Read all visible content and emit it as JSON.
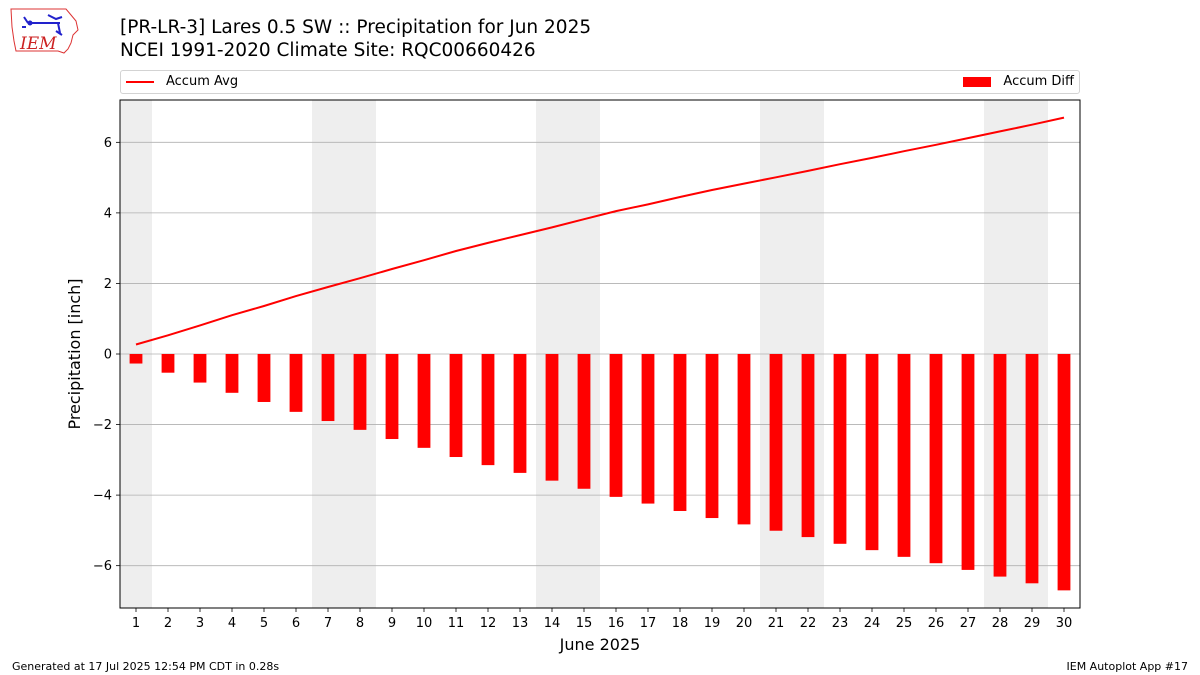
{
  "header": {
    "title_line1": "[PR-LR-3] Lares 0.5 SW :: Precipitation for Jun 2025",
    "title_line2": "NCEI 1991-2020 Climate Site: RQC00660426"
  },
  "logo": {
    "text": "IEM"
  },
  "legend": {
    "left_label": "Accum Avg",
    "right_label": "Accum Diff"
  },
  "footer": {
    "left": "Generated at 17 Jul 2025 12:54 PM CDT in 0.28s",
    "right": "IEM Autoplot App #17"
  },
  "colors": {
    "bars": "#ff0000",
    "line": "#ff0000",
    "weekend_shade": "#eeeeee",
    "grid": "#b0b0b0"
  },
  "chart_data": {
    "type": "bar",
    "xlabel": "June 2025",
    "ylabel": "Precipitation [inch]",
    "ylim": [
      -7.2,
      7.2
    ],
    "yticks": [
      -6,
      -4,
      -2,
      0,
      2,
      4,
      6
    ],
    "grid": true,
    "legend_position": "top",
    "categories": [
      "1",
      "2",
      "3",
      "4",
      "5",
      "6",
      "7",
      "8",
      "9",
      "10",
      "11",
      "12",
      "13",
      "14",
      "15",
      "16",
      "17",
      "18",
      "19",
      "20",
      "21",
      "22",
      "23",
      "24",
      "25",
      "26",
      "27",
      "28",
      "29",
      "30"
    ],
    "shaded_days": [
      1,
      7,
      8,
      14,
      15,
      21,
      22,
      28,
      29
    ],
    "series": [
      {
        "name": "Accum Diff",
        "type": "bar",
        "values": [
          -0.27,
          -0.53,
          -0.81,
          -1.1,
          -1.36,
          -1.64,
          -1.9,
          -2.15,
          -2.41,
          -2.66,
          -2.92,
          -3.15,
          -3.37,
          -3.59,
          -3.82,
          -4.05,
          -4.24,
          -4.45,
          -4.65,
          -4.83,
          -5.01,
          -5.19,
          -5.38,
          -5.56,
          -5.75,
          -5.93,
          -6.12,
          -6.31,
          -6.5,
          -6.7
        ]
      },
      {
        "name": "Accum Avg",
        "type": "line",
        "values": [
          0.27,
          0.53,
          0.81,
          1.1,
          1.36,
          1.64,
          1.9,
          2.15,
          2.41,
          2.66,
          2.92,
          3.15,
          3.37,
          3.59,
          3.82,
          4.05,
          4.24,
          4.45,
          4.65,
          4.83,
          5.01,
          5.19,
          5.38,
          5.56,
          5.75,
          5.93,
          6.12,
          6.31,
          6.5,
          6.7
        ]
      }
    ]
  }
}
